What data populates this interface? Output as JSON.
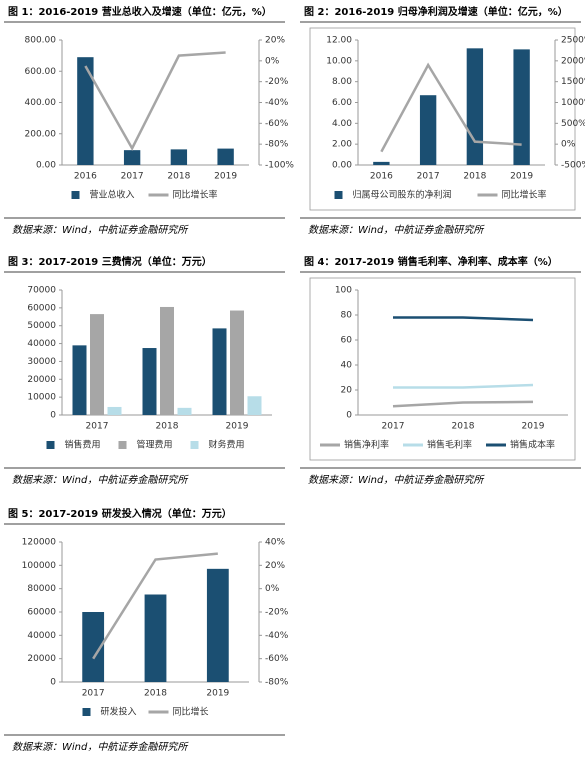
{
  "chart_data": [
    {
      "type": "combo",
      "title": "图 1：2016-2019 营业总收入及增速（单位：亿元，%）",
      "source": "数据来源：Wind，中航证券金融研究所",
      "categories": [
        "2016",
        "2017",
        "2018",
        "2019"
      ],
      "series": [
        {
          "name": "营业总收入",
          "type": "bar",
          "color": "#1b4f72",
          "values": [
            690,
            95,
            100,
            105
          ]
        },
        {
          "name": "同比增长率",
          "type": "line",
          "axis": "y2",
          "color": "#a6a6a6",
          "values": [
            -5,
            -84,
            5,
            8
          ]
        }
      ],
      "ylim": [
        0,
        800
      ],
      "yticks": [
        {
          "value": 0,
          "label": "0.00"
        },
        {
          "value": 200,
          "label": "200.00"
        },
        {
          "value": 400,
          "label": "400.00"
        },
        {
          "value": 600,
          "label": "600.00"
        },
        {
          "value": 800,
          "label": "800.00"
        }
      ],
      "y2lim": [
        -100,
        20
      ],
      "y2ticks": [
        {
          "value": -100,
          "label": "-100%"
        },
        {
          "value": -80,
          "label": "-80%"
        },
        {
          "value": -60,
          "label": "-60%"
        },
        {
          "value": -40,
          "label": "-40%"
        },
        {
          "value": -20,
          "label": "-20%"
        },
        {
          "value": 0,
          "label": "0%"
        },
        {
          "value": 20,
          "label": "20%"
        }
      ],
      "frame": false
    },
    {
      "type": "combo",
      "title": "图 2：2016-2019 归母净利润及增速（单位：亿元，%）",
      "source": "数据来源：Wind，中航证券金融研究所",
      "categories": [
        "2016",
        "2017",
        "2018",
        "2019"
      ],
      "series": [
        {
          "name": "归属母公司股东的净利润",
          "type": "bar",
          "color": "#1b4f72",
          "values": [
            0.3,
            6.7,
            11.2,
            11.1
          ]
        },
        {
          "name": "同比增长率",
          "type": "line",
          "axis": "y2",
          "color": "#a6a6a6",
          "values": [
            -180,
            1900,
            60,
            -10
          ]
        }
      ],
      "ylim": [
        0,
        12
      ],
      "yticks": [
        {
          "value": 0,
          "label": "0.00"
        },
        {
          "value": 2,
          "label": "2.00"
        },
        {
          "value": 4,
          "label": "4.00"
        },
        {
          "value": 6,
          "label": "6.00"
        },
        {
          "value": 8,
          "label": "8.00"
        },
        {
          "value": 10,
          "label": "10.00"
        },
        {
          "value": 12,
          "label": "12.00"
        }
      ],
      "y2lim": [
        -500,
        2500
      ],
      "y2ticks": [
        {
          "value": -500,
          "label": "-500%"
        },
        {
          "value": 0,
          "label": "0%"
        },
        {
          "value": 500,
          "label": "500%"
        },
        {
          "value": 1000,
          "label": "1000%"
        },
        {
          "value": 1500,
          "label": "1500%"
        },
        {
          "value": 2000,
          "label": "2000%"
        },
        {
          "value": 2500,
          "label": "2500%"
        }
      ],
      "frame": true
    },
    {
      "type": "bar",
      "title": "图 3：2017-2019 三费情况（单位：万元）",
      "source": "数据来源：Wind，中航证券金融研究所",
      "categories": [
        "2017",
        "2018",
        "2019"
      ],
      "series": [
        {
          "name": "销售费用",
          "type": "bar",
          "color": "#1b4f72",
          "values": [
            39000,
            37500,
            48500
          ]
        },
        {
          "name": "管理费用",
          "type": "bar",
          "color": "#a6a6a6",
          "values": [
            56500,
            60500,
            58500
          ]
        },
        {
          "name": "财务费用",
          "type": "bar",
          "color": "#b7dde8",
          "values": [
            4500,
            4000,
            10500
          ]
        }
      ],
      "ylim": [
        0,
        70000
      ],
      "yticks": [
        0,
        10000,
        20000,
        30000,
        40000,
        50000,
        60000,
        70000
      ],
      "frame": false
    },
    {
      "type": "line",
      "title": "图 4：2017-2019 销售毛利率、净利率、成本率（%）",
      "source": "数据来源：Wind，中航证券金融研究所",
      "categories": [
        "2017",
        "2018",
        "2019"
      ],
      "series": [
        {
          "name": "销售净利率",
          "type": "line",
          "color": "#a6a6a6",
          "values": [
            7,
            10,
            10.5
          ]
        },
        {
          "name": "销售毛利率",
          "type": "line",
          "color": "#b7dde8",
          "values": [
            22,
            22,
            24
          ]
        },
        {
          "name": "销售成本率",
          "type": "line",
          "color": "#1b4f72",
          "values": [
            78,
            78,
            76
          ]
        }
      ],
      "ylim": [
        0,
        100
      ],
      "yticks": [
        0,
        20,
        40,
        60,
        80,
        100
      ],
      "frame": true
    },
    {
      "type": "combo",
      "title": "图 5：2017-2019 研发投入情况（单位：万元）",
      "source": "数据来源：Wind，中航证券金融研究所",
      "categories": [
        "2017",
        "2018",
        "2019"
      ],
      "series": [
        {
          "name": "研发投入",
          "type": "bar",
          "color": "#1b4f72",
          "values": [
            60000,
            75000,
            97000
          ]
        },
        {
          "name": "同比增长",
          "type": "line",
          "axis": "y2",
          "color": "#a6a6a6",
          "values": [
            -60,
            25,
            30
          ]
        }
      ],
      "ylim": [
        0,
        120000
      ],
      "yticks": [
        0,
        20000,
        40000,
        60000,
        80000,
        100000,
        120000
      ],
      "y2lim": [
        -80,
        40
      ],
      "y2ticks": [
        {
          "value": -80,
          "label": "-80%"
        },
        {
          "value": -60,
          "label": "-60%"
        },
        {
          "value": -40,
          "label": "-40%"
        },
        {
          "value": -20,
          "label": "-20%"
        },
        {
          "value": 0,
          "label": "0%"
        },
        {
          "value": 20,
          "label": "20%"
        },
        {
          "value": 40,
          "label": "40%"
        }
      ],
      "frame": false
    }
  ]
}
